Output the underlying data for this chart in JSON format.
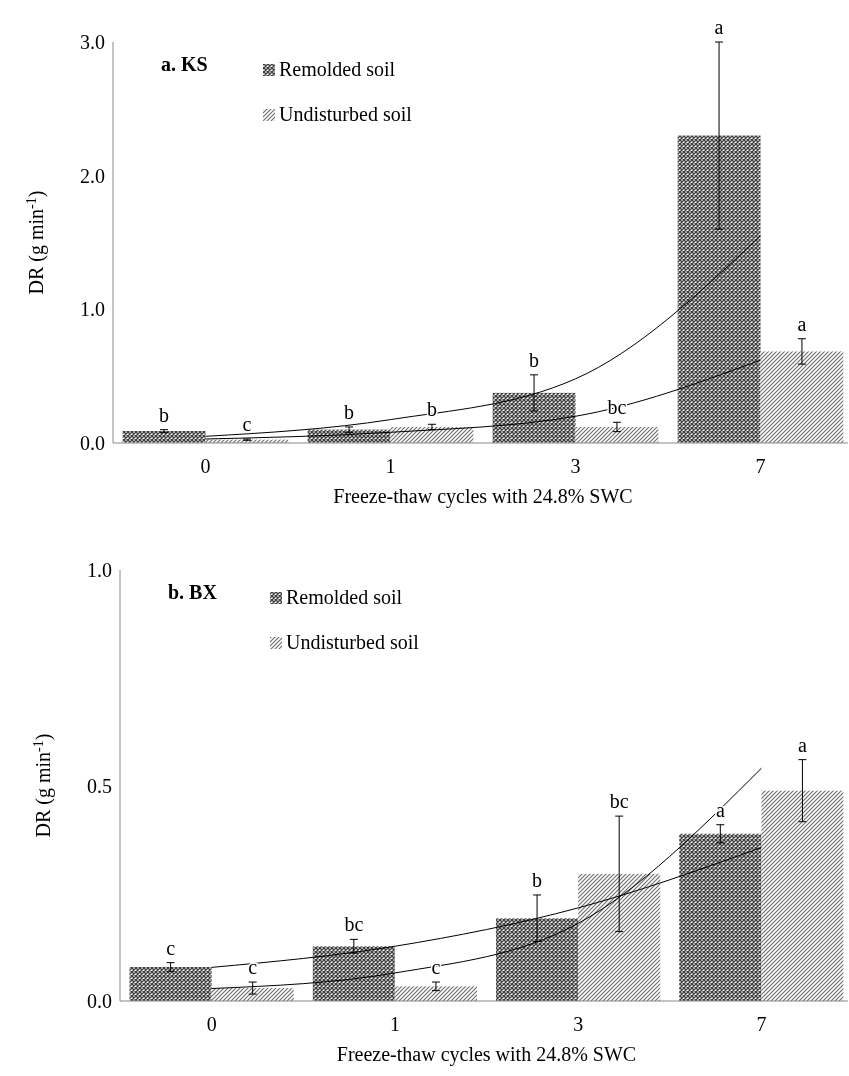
{
  "chart_data": [
    {
      "type": "bar",
      "title": "a. KS",
      "xlabel": "Freeze-thaw cycles with 24.8% SWC",
      "ylabel": "DR (g min$^{-1}$)",
      "categories": [
        "0",
        "1",
        "3",
        "7"
      ],
      "ylim": [
        0,
        3
      ],
      "yticks": [
        {
          "value": 0,
          "label": "0.0"
        },
        {
          "value": 1,
          "label": "1.0"
        },
        {
          "value": 2,
          "label": "2.0"
        },
        {
          "value": 3,
          "label": "3.0"
        }
      ],
      "legend": "top left",
      "grid": false,
      "series": [
        {
          "name": "Remolded soil",
          "color": "#404040",
          "values": [
            0.09,
            0.1,
            0.375,
            2.3
          ],
          "errors": [
            0.01,
            0.02,
            0.135,
            0.7
          ]
        },
        {
          "name": "Undisturbed soil",
          "color": "#707070",
          "values": [
            0.025,
            0.12,
            0.12,
            0.685
          ],
          "errors": [
            0.005,
            0.02,
            0.035,
            0.095
          ]
        },
        {
          "type": "line",
          "color": "#000000",
          "x": [
            "0",
            "1",
            "3",
            "7"
          ],
          "values": [
            0.05,
            0.175,
            0.48,
            1.55
          ]
        },
        {
          "type": "line",
          "color": "#000000",
          "x": [
            "0",
            "1",
            "3",
            "7"
          ],
          "values": [
            0.03,
            0.08,
            0.2,
            0.62
          ]
        }
      ],
      "annotations": [
        "b",
        "b",
        "b",
        "a",
        "c",
        "b",
        "bc",
        "a"
      ]
    },
    {
      "type": "bar",
      "title": "b. BX",
      "xlabel": "Freeze-thaw cycles with 24.8% SWC",
      "ylabel": "DR (g min$^{-1}$)",
      "categories": [
        "0",
        "1",
        "3",
        "7"
      ],
      "ylim": [
        0,
        1
      ],
      "yticks": [
        {
          "value": 0,
          "label": "0.0"
        },
        0.5,
        {
          "value": 1,
          "label": "1.0"
        }
      ],
      "legend": "top left",
      "grid": false,
      "series": [
        {
          "name": "Remolded soil",
          "color": "#404040",
          "values": [
            0.079,
            0.127,
            0.192,
            0.388
          ],
          "errors": [
            0.01,
            0.016,
            0.054,
            0.021
          ]
        },
        {
          "name": "Undisturbed soil",
          "color": "#707070",
          "values": [
            0.03,
            0.034,
            0.295,
            0.488
          ],
          "errors": [
            0.014,
            0.01,
            0.134,
            0.072
          ]
        },
        {
          "type": "line",
          "color": "#000000",
          "x": [
            "0",
            "1",
            "3",
            "7"
          ],
          "values": [
            0.078,
            0.127,
            0.216,
            0.356
          ]
        },
        {
          "type": "line",
          "color": "#000000",
          "x": [
            "0",
            "1",
            "3",
            "7"
          ],
          "values": [
            0.029,
            0.065,
            0.18,
            0.54
          ]
        }
      ],
      "annotations": [
        "c",
        "bc",
        "b",
        "a",
        "c",
        "c",
        "bc",
        "a"
      ]
    }
  ]
}
